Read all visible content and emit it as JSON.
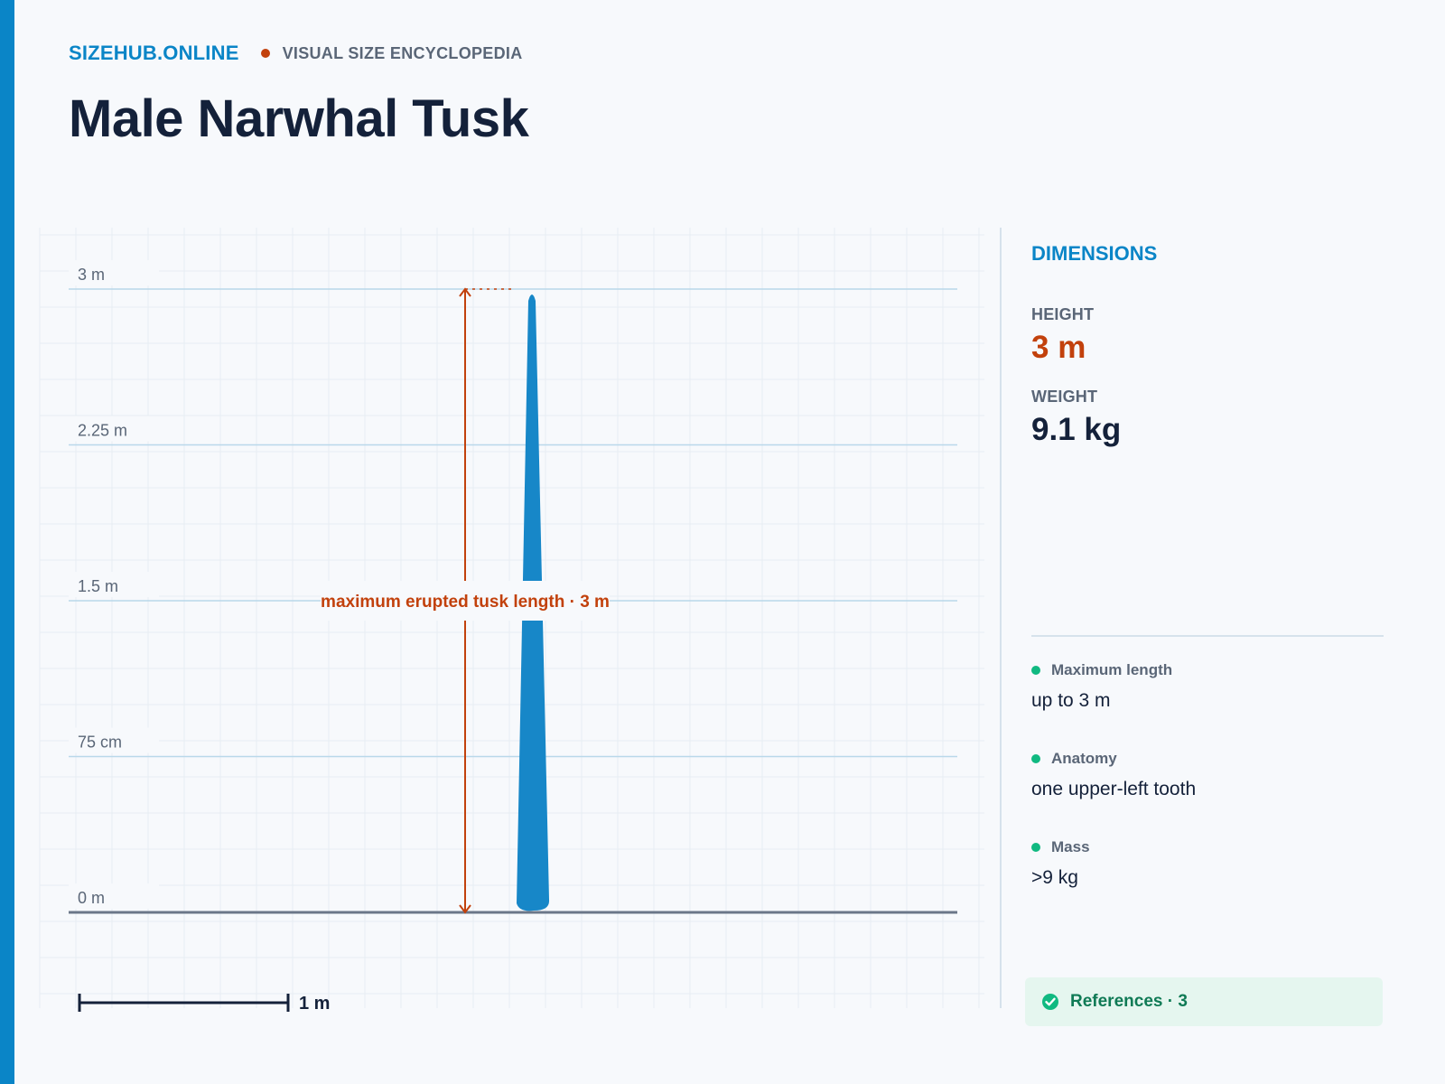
{
  "header": {
    "brand": "SIZEHUB.ONLINE",
    "tagline": "VISUAL SIZE ENCYCLOPEDIA",
    "title": "Male Narwhal Tusk"
  },
  "chart_data": {
    "type": "size-comparison",
    "y_unit": "m",
    "ylim": [
      0,
      3
    ],
    "y_ticks": [
      {
        "value": 0,
        "label": "0 m"
      },
      {
        "value": 0.75,
        "label": "75 cm"
      },
      {
        "value": 1.5,
        "label": "1.5 m"
      },
      {
        "value": 2.25,
        "label": "2.25 m"
      },
      {
        "value": 3,
        "label": "3 m"
      }
    ],
    "object": {
      "name": "Male Narwhal Tusk",
      "height": 3,
      "color": "#1787c8"
    },
    "annotation": {
      "text": "maximum erupted tusk length · 3 m",
      "value": 3,
      "color": "#c2410c"
    },
    "scale_bar": {
      "label": "1 m",
      "value": 1
    }
  },
  "panel": {
    "heading": "DIMENSIONS",
    "height_label": "HEIGHT",
    "height_value": "3 m",
    "weight_label": "WEIGHT",
    "weight_value": "9.1 kg",
    "facts": [
      {
        "title": "Maximum length",
        "value": "up to 3 m"
      },
      {
        "title": "Anatomy",
        "value": "one upper-left tooth"
      },
      {
        "title": "Mass",
        "value": ">9 kg"
      }
    ],
    "references": "References · 3"
  },
  "colors": {
    "brand": "#0a85c7",
    "accent": "#c2410c",
    "object": "#1787c8",
    "fact_dot": "#10b981",
    "title": "#14213a"
  }
}
